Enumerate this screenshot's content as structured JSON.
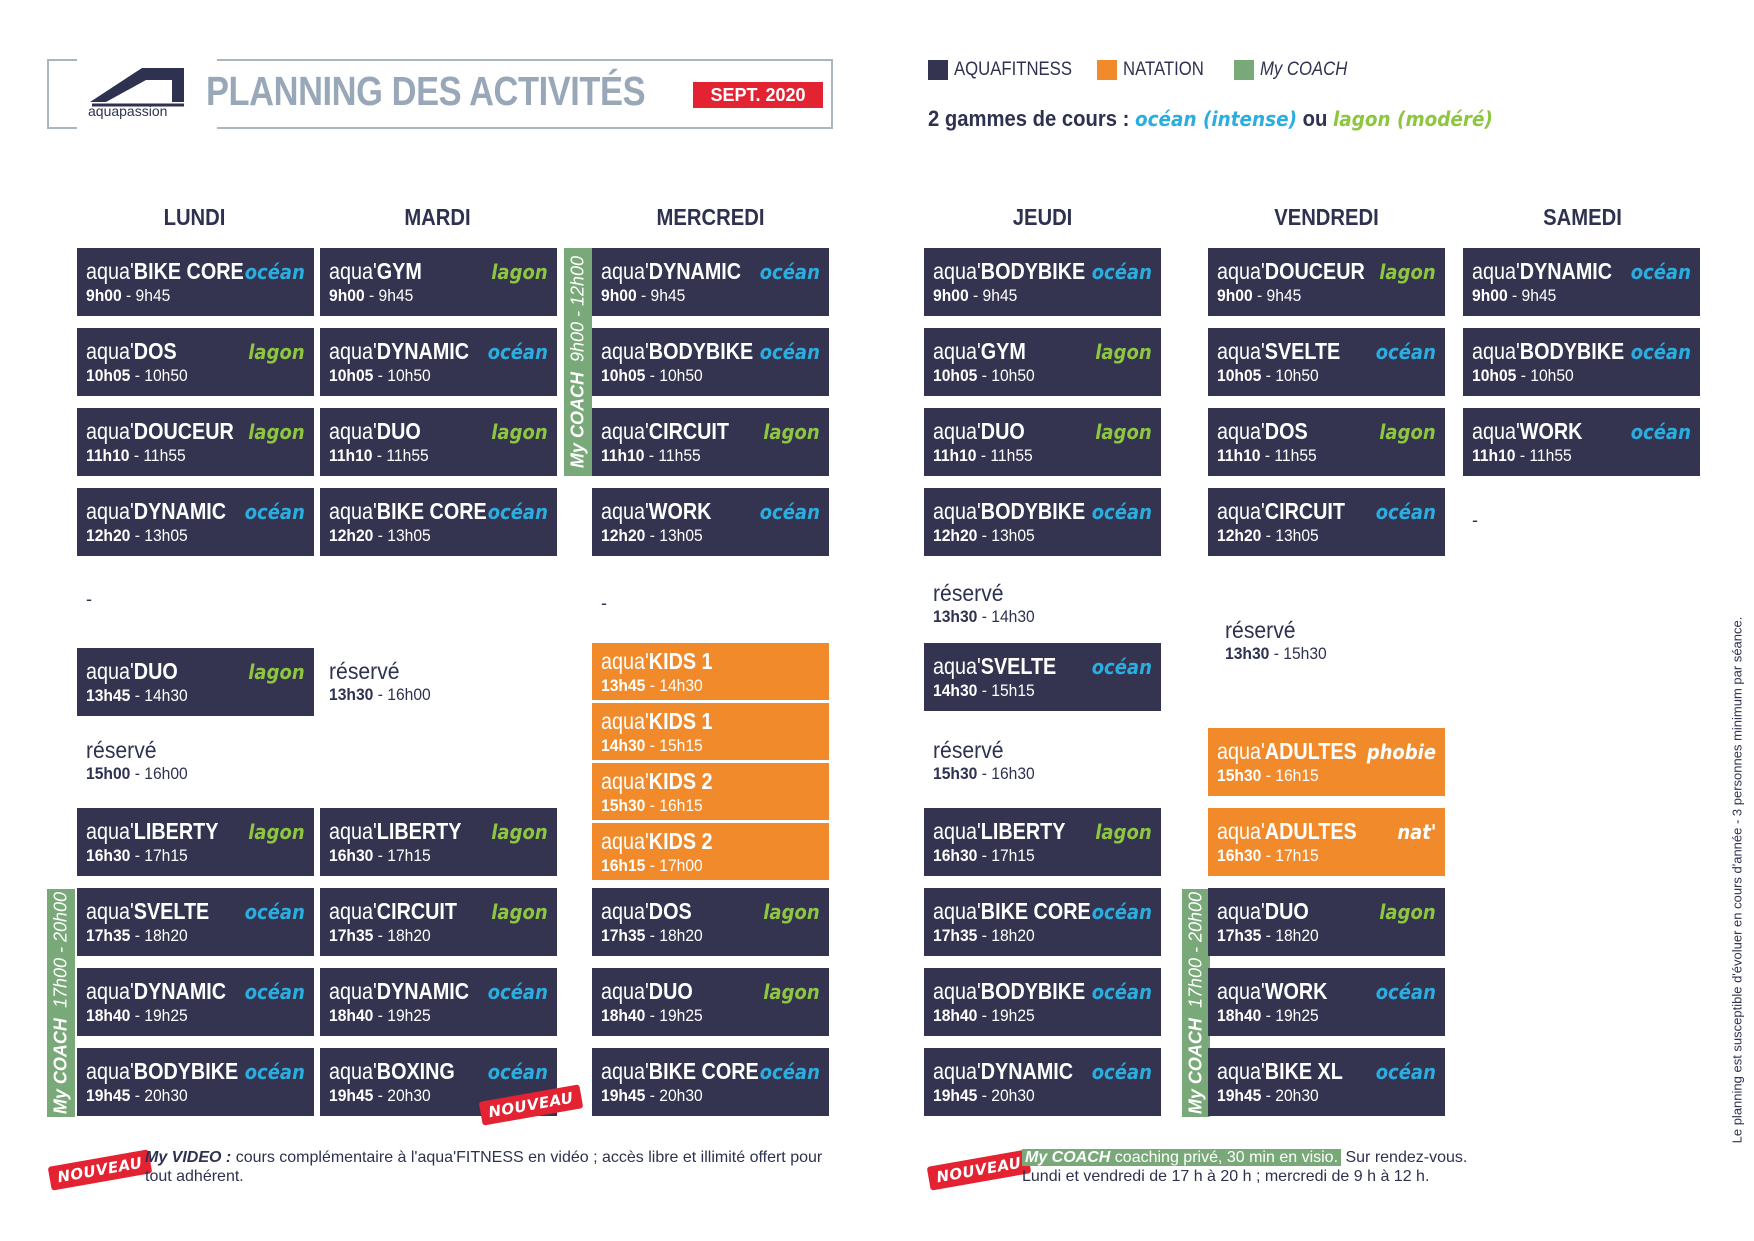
{
  "header": {
    "logo_text": "aquapassion",
    "title": "PLANNING DES ACTIVITÉS",
    "month": "SEPT. 2020"
  },
  "legend": {
    "items": [
      {
        "label": "AQUAFITNESS",
        "color": "#343451"
      },
      {
        "label": "NATATION",
        "color": "#f08a2a"
      },
      {
        "label": "My COACH",
        "color": "#79a978"
      }
    ],
    "gammes_prefix": "2 gammes de cours :",
    "gamme_intense": "océan (intense)",
    "gammes_or": "ou",
    "gamme_modere": "lagon (modéré)"
  },
  "colors": {
    "aquafitness": "#343451",
    "natation": "#f08a2a",
    "coach": "#79a978",
    "ocean": "#2aaee0",
    "lagon": "#8dc63f",
    "nouveau": "#e32232"
  },
  "days": [
    "LUNDI",
    "MARDI",
    "MERCREDI",
    "JEUDI",
    "VENDREDI",
    "SAMEDI"
  ],
  "prefix": "aqua'",
  "sep": " - ",
  "dash": "-",
  "classes": {
    "lundi": [
      {
        "name": "BIKE CORE",
        "start": "9h00",
        "end": "9h45",
        "tag": "océan"
      },
      {
        "name": "DOS",
        "start": "10h05",
        "end": "10h50",
        "tag": "lagon"
      },
      {
        "name": "DOUCEUR",
        "start": "11h10",
        "end": "11h55",
        "tag": "lagon"
      },
      {
        "name": "DYNAMIC",
        "start": "12h20",
        "end": "13h05",
        "tag": "océan"
      },
      {
        "name": "DUO",
        "start": "13h45",
        "end": "14h30",
        "tag": "lagon"
      },
      {
        "name": "réservé",
        "start": "15h00",
        "end": "16h00"
      },
      {
        "name": "LIBERTY",
        "start": "16h30",
        "end": "17h15",
        "tag": "lagon"
      },
      {
        "name": "SVELTE",
        "start": "17h35",
        "end": "18h20",
        "tag": "océan"
      },
      {
        "name": "DYNAMIC",
        "start": "18h40",
        "end": "19h25",
        "tag": "océan"
      },
      {
        "name": "BODYBIKE",
        "start": "19h45",
        "end": "20h30",
        "tag": "océan"
      }
    ],
    "mardi": [
      {
        "name": "GYM",
        "start": "9h00",
        "end": "9h45",
        "tag": "lagon"
      },
      {
        "name": "DYNAMIC",
        "start": "10h05",
        "end": "10h50",
        "tag": "océan"
      },
      {
        "name": "DUO",
        "start": "11h10",
        "end": "11h55",
        "tag": "lagon"
      },
      {
        "name": "BIKE CORE",
        "start": "12h20",
        "end": "13h05",
        "tag": "océan"
      },
      {
        "name": "réservé",
        "start": "13h30",
        "end": "16h00"
      },
      {
        "name": "LIBERTY",
        "start": "16h30",
        "end": "17h15",
        "tag": "lagon"
      },
      {
        "name": "CIRCUIT",
        "start": "17h35",
        "end": "18h20",
        "tag": "lagon"
      },
      {
        "name": "DYNAMIC",
        "start": "18h40",
        "end": "19h25",
        "tag": "océan"
      },
      {
        "name": "BOXING",
        "start": "19h45",
        "end": "20h30",
        "tag": "océan"
      }
    ],
    "mercredi": [
      {
        "name": "DYNAMIC",
        "start": "9h00",
        "end": "9h45",
        "tag": "océan"
      },
      {
        "name": "BODYBIKE",
        "start": "10h05",
        "end": "10h50",
        "tag": "océan"
      },
      {
        "name": "CIRCUIT",
        "start": "11h10",
        "end": "11h55",
        "tag": "lagon"
      },
      {
        "name": "WORK",
        "start": "12h20",
        "end": "13h05",
        "tag": "océan"
      },
      {
        "name": "KIDS 1",
        "start": "13h45",
        "end": "14h30"
      },
      {
        "name": "KIDS 1",
        "start": "14h30",
        "end": "15h15"
      },
      {
        "name": "KIDS 2",
        "start": "15h30",
        "end": "16h15"
      },
      {
        "name": "KIDS 2",
        "start": "16h15",
        "end": "17h00"
      },
      {
        "name": "DOS",
        "start": "17h35",
        "end": "18h20",
        "tag": "lagon"
      },
      {
        "name": "DUO",
        "start": "18h40",
        "end": "19h25",
        "tag": "lagon"
      },
      {
        "name": "BIKE CORE",
        "start": "19h45",
        "end": "20h30",
        "tag": "océan"
      }
    ],
    "jeudi": [
      {
        "name": "BODYBIKE",
        "start": "9h00",
        "end": "9h45",
        "tag": "océan"
      },
      {
        "name": "GYM",
        "start": "10h05",
        "end": "10h50",
        "tag": "lagon"
      },
      {
        "name": "DUO",
        "start": "11h10",
        "end": "11h55",
        "tag": "lagon"
      },
      {
        "name": "BODYBIKE",
        "start": "12h20",
        "end": "13h05",
        "tag": "océan"
      },
      {
        "name": "réservé",
        "start": "13h30",
        "end": "14h30"
      },
      {
        "name": "SVELTE",
        "start": "14h30",
        "end": "15h15",
        "tag": "océan"
      },
      {
        "name": "réservé",
        "start": "15h30",
        "end": "16h30"
      },
      {
        "name": "LIBERTY",
        "start": "16h30",
        "end": "17h15",
        "tag": "lagon"
      },
      {
        "name": "BIKE CORE",
        "start": "17h35",
        "end": "18h20",
        "tag": "océan"
      },
      {
        "name": "BODYBIKE",
        "start": "18h40",
        "end": "19h25",
        "tag": "océan"
      },
      {
        "name": "DYNAMIC",
        "start": "19h45",
        "end": "20h30",
        "tag": "océan"
      }
    ],
    "vendredi": [
      {
        "name": "DOUCEUR",
        "start": "9h00",
        "end": "9h45",
        "tag": "lagon"
      },
      {
        "name": "SVELTE",
        "start": "10h05",
        "end": "10h50",
        "tag": "océan"
      },
      {
        "name": "DOS",
        "start": "11h10",
        "end": "11h55",
        "tag": "lagon"
      },
      {
        "name": "CIRCUIT",
        "start": "12h20",
        "end": "13h05",
        "tag": "océan"
      },
      {
        "name": "réservé",
        "start": "13h30",
        "end": "15h30"
      },
      {
        "name": "ADULTES",
        "start": "15h30",
        "end": "16h15",
        "tag": "phobie"
      },
      {
        "name": "ADULTES",
        "start": "16h30",
        "end": "17h15",
        "tag": "nat'"
      },
      {
        "name": "DUO",
        "start": "17h35",
        "end": "18h20",
        "tag": "lagon"
      },
      {
        "name": "WORK",
        "start": "18h40",
        "end": "19h25",
        "tag": "océan"
      },
      {
        "name": "BIKE XL",
        "start": "19h45",
        "end": "20h30",
        "tag": "océan"
      }
    ],
    "samedi": [
      {
        "name": "DYNAMIC",
        "start": "9h00",
        "end": "9h45",
        "tag": "océan"
      },
      {
        "name": "BODYBIKE",
        "start": "10h05",
        "end": "10h50",
        "tag": "océan"
      },
      {
        "name": "WORK",
        "start": "11h10",
        "end": "11h55",
        "tag": "océan"
      }
    ]
  },
  "coach": {
    "label": "My COACH",
    "morning": "9h00 - 12h00",
    "evening": "17h00 - 20h00"
  },
  "nouveau": "NOUVEAU",
  "footer": {
    "video_title": "My VIDEO :",
    "video_text_1": "cours complémentaire à l'aqua'FITNESS en vidéo ; accès libre et illimité offert pour",
    "video_text_2": "tout adhérent.",
    "coach_title": "My COACH",
    "coach_highlight": "coaching privé, 30 min en visio.",
    "coach_rdv": "Sur rendez-vous.",
    "coach_text_2": "Lundi et vendredi de 17 h à 20 h ; mercredi de 9 h à 12 h."
  },
  "side_note": "Le planning est susceptible d'évoluer en cours d'année  -  3 personnes minimum par séance."
}
